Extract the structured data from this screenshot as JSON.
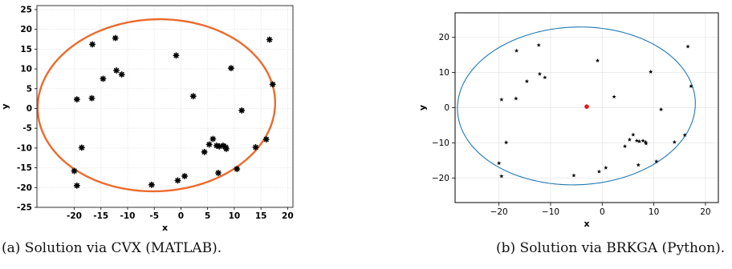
{
  "chart_data": [
    {
      "type": "scatter",
      "title": "",
      "xlabel": "x",
      "ylabel": "y",
      "xlim": [
        -27,
        21
      ],
      "ylim": [
        -25,
        26
      ],
      "xticks": [
        -20,
        -15,
        -10,
        -5,
        0,
        5,
        10,
        15,
        20
      ],
      "yticks": [
        -25,
        -20,
        -15,
        -10,
        -5,
        0,
        5,
        10,
        15,
        20,
        25
      ],
      "grid": true,
      "marker": "asterisk",
      "marker_color": "#000000",
      "ellipse": {
        "center": [
          -4.6,
          0.8
        ],
        "semi_axes": [
          22.4,
          21.6
        ],
        "rotation_deg": 25,
        "color": "#ec6a2c"
      },
      "points": [
        [
          -16.6,
          16.2
        ],
        [
          -12.3,
          17.8
        ],
        [
          -19.5,
          2.3
        ],
        [
          -16.7,
          2.6
        ],
        [
          -14.6,
          7.5
        ],
        [
          -12.1,
          9.6
        ],
        [
          -11.1,
          8.6
        ],
        [
          -0.9,
          13.4
        ],
        [
          2.3,
          3.1
        ],
        [
          9.4,
          10.2
        ],
        [
          16.6,
          17.4
        ],
        [
          17.2,
          6.1
        ],
        [
          11.4,
          -0.5
        ],
        [
          -18.6,
          -9.9
        ],
        [
          -20.0,
          -15.8
        ],
        [
          -19.5,
          -19.5
        ],
        [
          -5.5,
          -19.3
        ],
        [
          -0.6,
          -18.2
        ],
        [
          0.7,
          -17.1
        ],
        [
          4.4,
          -11.0
        ],
        [
          5.3,
          -9.1
        ],
        [
          6.0,
          -7.7
        ],
        [
          6.7,
          -9.4
        ],
        [
          7.2,
          -9.6
        ],
        [
          7.9,
          -9.4
        ],
        [
          8.5,
          -10.2
        ],
        [
          8.4,
          -9.8
        ],
        [
          7.0,
          -16.3
        ],
        [
          10.5,
          -15.3
        ],
        [
          14.0,
          -9.8
        ],
        [
          16.0,
          -7.8
        ]
      ]
    },
    {
      "type": "scatter",
      "title": "",
      "xlabel": "x",
      "ylabel": "y",
      "xlim": [
        -28.5,
        22.5
      ],
      "ylim": [
        -27,
        27
      ],
      "xticks": [
        -20,
        -10,
        0,
        10,
        20
      ],
      "yticks": [
        -20,
        -10,
        0,
        10,
        20
      ],
      "grid": true,
      "marker": "star",
      "marker_color": "#000000",
      "ellipse": {
        "center": [
          -5.0,
          0.5
        ],
        "semi_axes": [
          23.2,
          22.3
        ],
        "rotation_deg": 25,
        "color": "#1f77b4"
      },
      "center_point": {
        "x": -3.0,
        "y": 0.3,
        "color": "#e8141a"
      },
      "points": [
        [
          -16.6,
          16.2
        ],
        [
          -12.3,
          17.8
        ],
        [
          -19.5,
          2.3
        ],
        [
          -16.7,
          2.6
        ],
        [
          -14.6,
          7.5
        ],
        [
          -12.1,
          9.6
        ],
        [
          -11.1,
          8.6
        ],
        [
          -0.9,
          13.4
        ],
        [
          2.3,
          3.1
        ],
        [
          9.4,
          10.2
        ],
        [
          16.6,
          17.4
        ],
        [
          17.2,
          6.1
        ],
        [
          11.4,
          -0.5
        ],
        [
          -18.6,
          -9.9
        ],
        [
          -20.0,
          -15.8
        ],
        [
          -19.5,
          -19.5
        ],
        [
          -5.5,
          -19.3
        ],
        [
          -0.6,
          -18.2
        ],
        [
          0.7,
          -17.1
        ],
        [
          4.4,
          -11.0
        ],
        [
          5.3,
          -9.1
        ],
        [
          6.0,
          -7.7
        ],
        [
          6.7,
          -9.4
        ],
        [
          7.2,
          -9.6
        ],
        [
          7.9,
          -9.4
        ],
        [
          8.5,
          -10.2
        ],
        [
          8.4,
          -9.8
        ],
        [
          7.0,
          -16.3
        ],
        [
          10.5,
          -15.3
        ],
        [
          14.0,
          -9.8
        ],
        [
          16.0,
          -7.8
        ]
      ]
    }
  ],
  "captions": {
    "a": "(a) Solution via CVX (MATLAB).",
    "b": "(b) Solution via BRKGA (Python)."
  }
}
